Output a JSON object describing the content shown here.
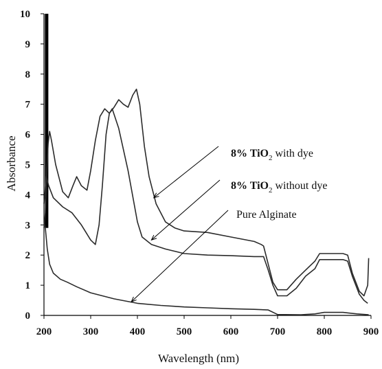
{
  "chart_data": {
    "type": "line",
    "xlabel": "Wavelength (nm)",
    "ylabel": "Absorbance",
    "xlim": [
      200,
      900
    ],
    "ylim": [
      0,
      10
    ],
    "x_ticks": [
      200,
      300,
      400,
      500,
      600,
      700,
      800,
      900
    ],
    "y_ticks": [
      0,
      1,
      2,
      3,
      4,
      5,
      6,
      7,
      8,
      9,
      10
    ],
    "grid": false,
    "legend": "none",
    "series": [
      {
        "name": "8% TiO2 with dye",
        "points": [
          [
            200,
            2.9
          ],
          [
            203,
            3.4
          ],
          [
            206,
            4.8
          ],
          [
            209,
            5.7
          ],
          [
            212,
            6.1
          ],
          [
            216,
            5.8
          ],
          [
            225,
            5.0
          ],
          [
            240,
            4.1
          ],
          [
            252,
            3.9
          ],
          [
            262,
            4.3
          ],
          [
            270,
            4.6
          ],
          [
            280,
            4.3
          ],
          [
            292,
            4.15
          ],
          [
            300,
            4.8
          ],
          [
            310,
            5.8
          ],
          [
            320,
            6.6
          ],
          [
            330,
            6.85
          ],
          [
            340,
            6.7
          ],
          [
            350,
            6.9
          ],
          [
            360,
            7.15
          ],
          [
            370,
            7.0
          ],
          [
            380,
            6.9
          ],
          [
            390,
            7.3
          ],
          [
            398,
            7.5
          ],
          [
            405,
            7.0
          ],
          [
            415,
            5.6
          ],
          [
            425,
            4.6
          ],
          [
            440,
            3.7
          ],
          [
            460,
            3.1
          ],
          [
            480,
            2.9
          ],
          [
            500,
            2.8
          ],
          [
            550,
            2.75
          ],
          [
            600,
            2.6
          ],
          [
            650,
            2.45
          ],
          [
            665,
            2.35
          ],
          [
            670,
            2.3
          ],
          [
            680,
            1.7
          ],
          [
            690,
            1.1
          ],
          [
            700,
            0.85
          ],
          [
            720,
            0.85
          ],
          [
            740,
            1.2
          ],
          [
            760,
            1.5
          ],
          [
            780,
            1.8
          ],
          [
            790,
            2.05
          ],
          [
            810,
            2.05
          ],
          [
            840,
            2.05
          ],
          [
            850,
            2.0
          ],
          [
            860,
            1.4
          ],
          [
            875,
            0.8
          ],
          [
            885,
            0.65
          ],
          [
            893,
            1.0
          ],
          [
            895,
            1.9
          ]
        ]
      },
      {
        "name": "8% TiO2 without dye",
        "points": [
          [
            200,
            3.7
          ],
          [
            205,
            4.6
          ],
          [
            210,
            4.3
          ],
          [
            220,
            3.9
          ],
          [
            240,
            3.6
          ],
          [
            260,
            3.4
          ],
          [
            280,
            3.0
          ],
          [
            300,
            2.5
          ],
          [
            310,
            2.35
          ],
          [
            318,
            3.0
          ],
          [
            325,
            4.3
          ],
          [
            333,
            6.0
          ],
          [
            340,
            6.7
          ],
          [
            346,
            6.85
          ],
          [
            360,
            6.2
          ],
          [
            380,
            4.8
          ],
          [
            400,
            3.1
          ],
          [
            410,
            2.6
          ],
          [
            430,
            2.35
          ],
          [
            460,
            2.2
          ],
          [
            500,
            2.05
          ],
          [
            550,
            2.0
          ],
          [
            600,
            1.98
          ],
          [
            650,
            1.95
          ],
          [
            670,
            1.95
          ],
          [
            680,
            1.5
          ],
          [
            690,
            1.0
          ],
          [
            700,
            0.65
          ],
          [
            720,
            0.65
          ],
          [
            740,
            0.9
          ],
          [
            760,
            1.3
          ],
          [
            780,
            1.55
          ],
          [
            790,
            1.85
          ],
          [
            810,
            1.85
          ],
          [
            840,
            1.85
          ],
          [
            850,
            1.8
          ],
          [
            860,
            1.3
          ],
          [
            875,
            0.7
          ],
          [
            885,
            0.5
          ],
          [
            893,
            0.4
          ]
        ]
      },
      {
        "name": "Pure Alginate",
        "points": [
          [
            200,
            3.1
          ],
          [
            203,
            2.9
          ],
          [
            207,
            2.2
          ],
          [
            212,
            1.7
          ],
          [
            220,
            1.4
          ],
          [
            235,
            1.2
          ],
          [
            250,
            1.1
          ],
          [
            270,
            0.95
          ],
          [
            300,
            0.75
          ],
          [
            350,
            0.55
          ],
          [
            400,
            0.4
          ],
          [
            450,
            0.33
          ],
          [
            500,
            0.28
          ],
          [
            550,
            0.25
          ],
          [
            600,
            0.22
          ],
          [
            650,
            0.2
          ],
          [
            680,
            0.18
          ],
          [
            700,
            0.03
          ],
          [
            750,
            0.02
          ],
          [
            780,
            0.05
          ],
          [
            800,
            0.1
          ],
          [
            840,
            0.1
          ],
          [
            870,
            0.05
          ],
          [
            895,
            0.02
          ]
        ]
      }
    ],
    "annotations": [
      {
        "prefix": "8% TiO",
        "subscript": "2",
        "suffix": " with dye"
      },
      {
        "prefix": "8% TiO",
        "subscript": "2",
        "suffix": " without dye"
      },
      {
        "text": "Pure  Alginate"
      }
    ]
  }
}
